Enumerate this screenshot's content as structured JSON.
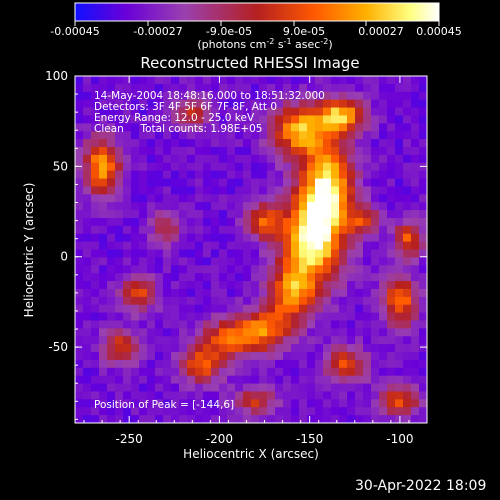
{
  "chart_data": {
    "type": "heatmap",
    "title": "Reconstructed RHESSI Image",
    "xlabel": "Heliocentric X (arcsec)",
    "ylabel": "Heliocentric Y (arcsec)",
    "xlim": [
      -280,
      -85
    ],
    "ylim": [
      -92,
      100
    ],
    "xticks": [
      -250,
      -200,
      -150,
      -100
    ],
    "yticks": [
      -50,
      0,
      50,
      100
    ],
    "colorbar": {
      "ticks": [
        "-0.00045",
        "-0.00027",
        "-9.0e-05",
        "9.0e-05",
        "0.00027",
        "0.00045"
      ],
      "unit_main": "(photons cm",
      "unit_sup1": "-2",
      "unit_mid": " s",
      "unit_sup2": "-1",
      "unit_end": " asec",
      "unit_sup3": "-2",
      "unit_close": ")",
      "colors": [
        "#1010ff",
        "#6a00d8",
        "#9a40b0",
        "#b52020",
        "#ff5a00",
        "#ffb000",
        "#ffff80",
        "#ffffff"
      ]
    },
    "annotations": [
      "14-May-2004 18:48:16.000 to 18:51:32.000",
      "Detectors: 3F 4F 5F 6F 7F 8F, Att 0",
      "Energy Range: 12.0 - 25.0 keV",
      "Clean     Total counts: 1.98E+05"
    ],
    "peak_label": "Position of Peak = [-144,6]",
    "peak": [
      -144,
      6
    ],
    "grid": false
  },
  "footer": {
    "timestamp": "30-Apr-2022 18:09"
  }
}
